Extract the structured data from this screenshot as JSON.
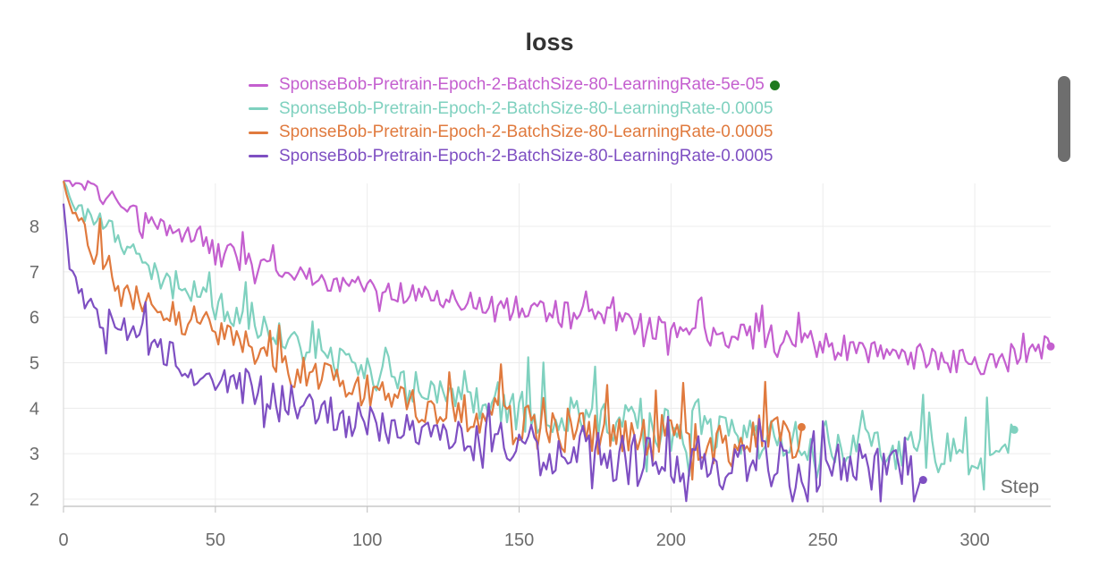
{
  "chart_data": {
    "type": "line",
    "title": "loss",
    "xlabel": "Step",
    "ylabel": "",
    "xlim": [
      0,
      325
    ],
    "ylim": [
      2,
      9
    ],
    "x_ticks": [
      0,
      50,
      100,
      150,
      200,
      250,
      300
    ],
    "y_ticks": [
      2,
      3,
      4,
      5,
      6,
      7,
      8
    ],
    "grid": true,
    "legend_position": "top-center",
    "series": [
      {
        "name": "SponseBob-Pretrain-Epoch-2-BatchSize-80-LearningRate-5e-05",
        "color": "#c45fcf",
        "status_dot": true,
        "x_max": 325,
        "anchors": [
          [
            0,
            9.0
          ],
          [
            5,
            8.95
          ],
          [
            10,
            8.8
          ],
          [
            20,
            8.45
          ],
          [
            30,
            8.1
          ],
          [
            40,
            7.8
          ],
          [
            50,
            7.55
          ],
          [
            60,
            7.3
          ],
          [
            70,
            7.1
          ],
          [
            80,
            6.9
          ],
          [
            90,
            6.75
          ],
          [
            100,
            6.65
          ],
          [
            120,
            6.45
          ],
          [
            140,
            6.3
          ],
          [
            160,
            6.1
          ],
          [
            180,
            5.95
          ],
          [
            200,
            5.75
          ],
          [
            220,
            5.6
          ],
          [
            240,
            5.5
          ],
          [
            260,
            5.3
          ],
          [
            280,
            5.15
          ],
          [
            300,
            5.0
          ],
          [
            310,
            5.1
          ],
          [
            325,
            5.45
          ]
        ]
      },
      {
        "name": "SponseBob-Pretrain-Epoch-2-BatchSize-80-LearningRate-0.0005",
        "color": "#7fd1bf",
        "x_max": 313,
        "anchors": [
          [
            0,
            9.0
          ],
          [
            4,
            8.5
          ],
          [
            10,
            8.1
          ],
          [
            20,
            7.6
          ],
          [
            25,
            7.2
          ],
          [
            30,
            6.9
          ],
          [
            40,
            6.6
          ],
          [
            50,
            6.3
          ],
          [
            60,
            5.95
          ],
          [
            70,
            5.6
          ],
          [
            80,
            5.3
          ],
          [
            90,
            5.0
          ],
          [
            100,
            4.75
          ],
          [
            120,
            4.4
          ],
          [
            140,
            4.1
          ],
          [
            150,
            3.95
          ],
          [
            170,
            3.75
          ],
          [
            190,
            3.6
          ],
          [
            210,
            3.45
          ],
          [
            230,
            3.35
          ],
          [
            250,
            3.25
          ],
          [
            270,
            3.15
          ],
          [
            290,
            3.05
          ],
          [
            300,
            3.0
          ],
          [
            313,
            3.25
          ]
        ]
      },
      {
        "name": "SponseBob-Pretrain-Epoch-2-BatchSize-80-LearningRate-0.0005",
        "color": "#e07a3e",
        "x_max": 243,
        "anchors": [
          [
            0,
            9.0
          ],
          [
            4,
            8.2
          ],
          [
            8,
            7.7
          ],
          [
            15,
            7.0
          ],
          [
            20,
            6.6
          ],
          [
            30,
            6.3
          ],
          [
            40,
            5.95
          ],
          [
            50,
            5.7
          ],
          [
            60,
            5.4
          ],
          [
            70,
            5.1
          ],
          [
            80,
            4.85
          ],
          [
            90,
            4.6
          ],
          [
            100,
            4.4
          ],
          [
            120,
            4.0
          ],
          [
            140,
            3.75
          ],
          [
            160,
            3.55
          ],
          [
            180,
            3.4
          ],
          [
            200,
            3.3
          ],
          [
            220,
            3.2
          ],
          [
            243,
            3.35
          ]
        ]
      },
      {
        "name": "SponseBob-Pretrain-Epoch-2-BatchSize-80-LearningRate-0.0005",
        "color": "#7e4fc2",
        "x_max": 283,
        "anchors": [
          [
            0,
            8.5
          ],
          [
            2,
            7.0
          ],
          [
            5,
            6.6
          ],
          [
            10,
            6.3
          ],
          [
            20,
            5.8
          ],
          [
            30,
            5.3
          ],
          [
            40,
            5.0
          ],
          [
            50,
            4.7
          ],
          [
            60,
            4.45
          ],
          [
            70,
            4.2
          ],
          [
            80,
            4.0
          ],
          [
            90,
            3.8
          ],
          [
            100,
            3.7
          ],
          [
            120,
            3.45
          ],
          [
            140,
            3.2
          ],
          [
            160,
            3.05
          ],
          [
            180,
            2.9
          ],
          [
            200,
            2.8
          ],
          [
            220,
            2.75
          ],
          [
            240,
            2.7
          ],
          [
            260,
            2.75
          ],
          [
            283,
            2.8
          ]
        ]
      }
    ]
  },
  "legend": {
    "items": [
      "SponseBob-Pretrain-Epoch-2-BatchSize-80-LearningRate-5e-05",
      "SponseBob-Pretrain-Epoch-2-BatchSize-80-LearningRate-0.0005",
      "SponseBob-Pretrain-Epoch-2-BatchSize-80-LearningRate-0.0005",
      "SponseBob-Pretrain-Epoch-2-BatchSize-80-LearningRate-0.0005"
    ],
    "status_dot_color": "#1f7a1f"
  }
}
